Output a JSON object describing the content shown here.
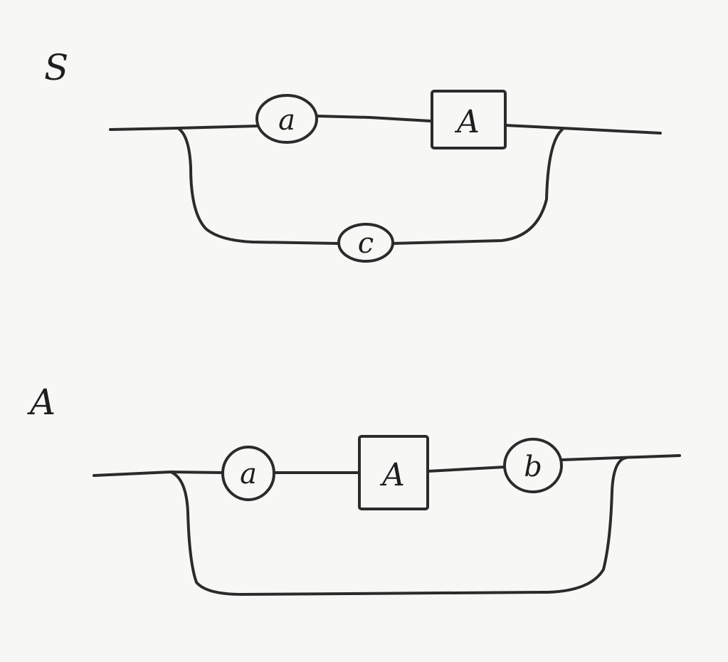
{
  "rules": [
    {
      "name": "S",
      "main_path": [
        {
          "kind": "terminal",
          "label": "a"
        },
        {
          "kind": "nonterminal",
          "label": "A"
        }
      ],
      "bypass_path": [
        {
          "kind": "terminal",
          "label": "c"
        }
      ]
    },
    {
      "name": "A",
      "main_path": [
        {
          "kind": "terminal",
          "label": "a"
        },
        {
          "kind": "nonterminal",
          "label": "A"
        },
        {
          "kind": "terminal",
          "label": "b"
        }
      ],
      "bypass_path": []
    }
  ],
  "colors": {
    "ink": "#2b2b2b",
    "paper": "#f7f7f5"
  }
}
